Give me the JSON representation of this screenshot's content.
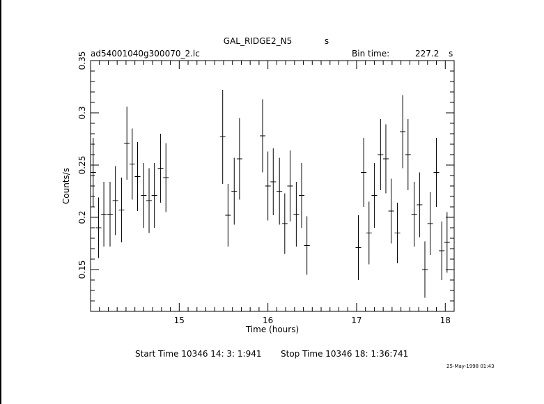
{
  "header": {
    "title": "GAL_RIDGE2_N5",
    "title_suffix": "s",
    "filename": "ad54001040g300070_2.lc",
    "bin_label": "Bin time:",
    "bin_value": "227.2",
    "bin_unit": "s"
  },
  "footer": {
    "start_time": "Start Time 10346 14: 3: 1:941",
    "stop_time": "Stop Time 10346 18: 1:36:741",
    "date_stamp": "25-May-1998 01:43"
  },
  "chart_data": {
    "type": "scatter",
    "title": "GAL_RIDGE2_N5",
    "xlabel": "Time (hours)",
    "ylabel": "Counts/s",
    "xlim": [
      14.0,
      18.1
    ],
    "ylim": [
      0.11,
      0.35
    ],
    "xticks": [
      15,
      16,
      17,
      18
    ],
    "xtick_labels": [
      "15",
      "16",
      "17",
      "18"
    ],
    "yticks": [
      0.15,
      0.2,
      0.25,
      0.3,
      0.35
    ],
    "ytick_labels": [
      "0.15",
      "0.2",
      "0.25",
      "0.3",
      "0.35"
    ],
    "grid": false,
    "x_halfwidth": 0.0316,
    "series": [
      {
        "x": [
          14.03,
          14.09,
          14.15,
          14.22,
          14.28,
          14.35,
          14.41,
          14.47,
          14.53,
          14.6,
          14.66,
          14.72,
          14.79,
          14.85,
          15.49,
          15.55,
          15.62,
          15.68,
          15.94,
          16.0,
          16.06,
          16.13,
          16.19,
          16.25,
          16.32,
          16.38,
          16.44,
          17.02,
          17.08,
          17.14,
          17.2,
          17.27,
          17.33,
          17.39,
          17.46,
          17.52,
          17.58,
          17.65,
          17.71,
          17.77,
          17.83,
          17.9,
          17.96,
          18.02
        ],
        "y": [
          0.243,
          0.19,
          0.203,
          0.203,
          0.216,
          0.207,
          0.271,
          0.251,
          0.239,
          0.221,
          0.216,
          0.221,
          0.247,
          0.238,
          0.277,
          0.202,
          0.225,
          0.256,
          0.278,
          0.23,
          0.234,
          0.225,
          0.194,
          0.23,
          0.203,
          0.221,
          0.173,
          0.171,
          0.243,
          0.185,
          0.221,
          0.26,
          0.256,
          0.206,
          0.185,
          0.282,
          0.26,
          0.203,
          0.212,
          0.15,
          0.194,
          0.243,
          0.168,
          0.176
        ],
        "yerr": [
          0.033,
          0.029,
          0.031,
          0.031,
          0.033,
          0.031,
          0.035,
          0.034,
          0.033,
          0.031,
          0.031,
          0.031,
          0.033,
          0.033,
          0.045,
          0.03,
          0.032,
          0.039,
          0.035,
          0.033,
          0.032,
          0.032,
          0.029,
          0.034,
          0.031,
          0.031,
          0.028,
          0.031,
          0.033,
          0.03,
          0.031,
          0.034,
          0.033,
          0.031,
          0.029,
          0.035,
          0.034,
          0.031,
          0.031,
          0.027,
          0.03,
          0.033,
          0.028,
          0.029
        ]
      }
    ]
  }
}
